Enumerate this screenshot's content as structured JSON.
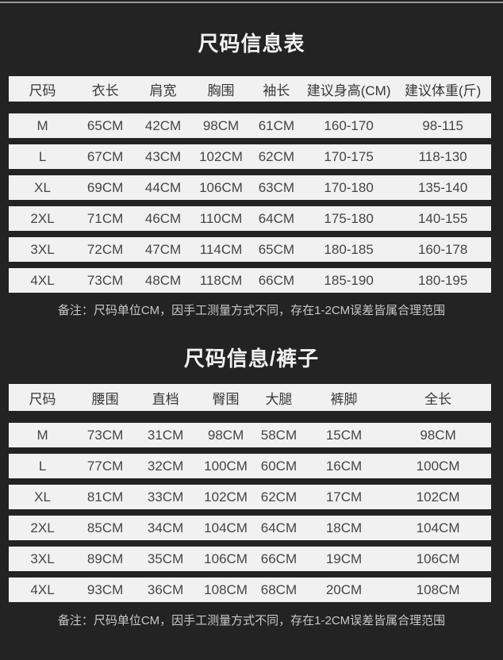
{
  "colors": {
    "background": "#232323",
    "top_divider": "#999999",
    "row_strip": "#f1f1f1",
    "table_text": "#454545",
    "header_text": "#383838",
    "title_text": "#f2f2f2",
    "note_text": "#c8c8c8"
  },
  "chart_data": [
    {
      "type": "table",
      "title": "尺码信息表",
      "columns": [
        "尺码",
        "衣长",
        "肩宽",
        "胸围",
        "袖长",
        "建议身高(CM)",
        "建议体重(斤)"
      ],
      "rows": [
        [
          "M",
          "65CM",
          "42CM",
          "98CM",
          "61CM",
          "160-170",
          "98-115"
        ],
        [
          "L",
          "67CM",
          "43CM",
          "102CM",
          "62CM",
          "170-175",
          "118-130"
        ],
        [
          "XL",
          "69CM",
          "44CM",
          "106CM",
          "63CM",
          "170-180",
          "135-140"
        ],
        [
          "2XL",
          "71CM",
          "46CM",
          "110CM",
          "64CM",
          "175-180",
          "140-155"
        ],
        [
          "3XL",
          "72CM",
          "47CM",
          "114CM",
          "65CM",
          "180-185",
          "160-178"
        ],
        [
          "4XL",
          "73CM",
          "48CM",
          "118CM",
          "66CM",
          "185-190",
          "180-195"
        ]
      ],
      "note": "备注：尺码单位CM，因手工测量方式不同，存在1-2CM误差皆属合理范围"
    },
    {
      "type": "table",
      "title": "尺码信息/裤子",
      "columns": [
        "尺码",
        "腰围",
        "直档",
        "臀围",
        "大腿",
        "裤脚",
        "全长"
      ],
      "rows": [
        [
          "M",
          "73CM",
          "31CM",
          "98CM",
          "58CM",
          "15CM",
          "98CM"
        ],
        [
          "L",
          "77CM",
          "32CM",
          "100CM",
          "60CM",
          "16CM",
          "100CM"
        ],
        [
          "XL",
          "81CM",
          "33CM",
          "102CM",
          "62CM",
          "17CM",
          "102CM"
        ],
        [
          "2XL",
          "85CM",
          "34CM",
          "104CM",
          "64CM",
          "18CM",
          "104CM"
        ],
        [
          "3XL",
          "89CM",
          "35CM",
          "106CM",
          "66CM",
          "19CM",
          "106CM"
        ],
        [
          "4XL",
          "93CM",
          "36CM",
          "108CM",
          "68CM",
          "20CM",
          "108CM"
        ]
      ],
      "note": "备注：尺码单位CM，因手工测量方式不同，存在1-2CM误差皆属合理范围"
    }
  ]
}
